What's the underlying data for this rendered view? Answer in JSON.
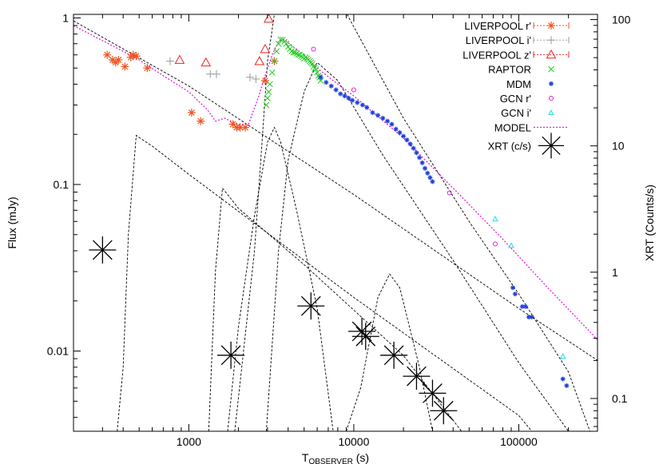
{
  "chart_data": {
    "type": "scatter",
    "title": "",
    "xlabel_main": "T",
    "xlabel_sub": "OBSERVER",
    "xlabel_unit": " (s)",
    "ylabel": "Flux (mJy)",
    "y2label": "XRT (Counts/s)",
    "x_scale": "log",
    "y_scale": "log",
    "y2_scale": "log",
    "xlim": [
      200,
      300000
    ],
    "ylim": [
      0.0033,
      1.05
    ],
    "y2lim": [
      0.055,
      110
    ],
    "grid": false,
    "legend_position": "top-right",
    "x_ticks": [
      {
        "value": 1000,
        "label": "1000"
      },
      {
        "value": 10000,
        "label": "10000"
      },
      {
        "value": 100000,
        "label": "100000"
      }
    ],
    "y_ticks": [
      {
        "value": 1,
        "label": "1"
      },
      {
        "value": 0.1,
        "label": "0.1"
      },
      {
        "value": 0.01,
        "label": "0.01"
      }
    ],
    "y2_ticks": [
      {
        "value": 100,
        "label": "100"
      },
      {
        "value": 10,
        "label": "10"
      },
      {
        "value": 1,
        "label": "1"
      },
      {
        "value": 0.1,
        "label": "0.1"
      }
    ],
    "series": [
      {
        "name": "LIVERPOOL r'",
        "marker": "asterisk",
        "color": "#ee5522",
        "points": [
          [
            320,
            0.6
          ],
          [
            345,
            0.56
          ],
          [
            360,
            0.54
          ],
          [
            375,
            0.56
          ],
          [
            410,
            0.51
          ],
          [
            445,
            0.58
          ],
          [
            460,
            0.6
          ],
          [
            480,
            0.59
          ],
          [
            560,
            0.5
          ],
          [
            1040,
            0.27
          ],
          [
            1180,
            0.24
          ],
          [
            1850,
            0.23
          ],
          [
            1950,
            0.22
          ],
          [
            2050,
            0.22
          ],
          [
            2200,
            0.22
          ],
          [
            2900,
            0.42
          ],
          [
            3300,
            0.55
          ]
        ]
      },
      {
        "name": "LIVERPOOL i'",
        "marker": "plus",
        "color": "#999999",
        "points": [
          [
            770,
            0.55
          ],
          [
            1350,
            0.46
          ],
          [
            1470,
            0.46
          ],
          [
            2350,
            0.44
          ],
          [
            2550,
            0.43
          ]
        ]
      },
      {
        "name": "LIVERPOOL z'",
        "marker": "triangle",
        "color": "#ee2222",
        "points": [
          [
            880,
            0.56
          ],
          [
            1270,
            0.54
          ],
          [
            2680,
            0.55
          ],
          [
            2900,
            0.65
          ],
          [
            3050,
            0.99
          ]
        ]
      },
      {
        "name": "RAPTOR",
        "marker": "x",
        "color": "#22cc22",
        "points": [
          [
            2950,
            0.3
          ],
          [
            3000,
            0.33
          ],
          [
            3050,
            0.36
          ],
          [
            3100,
            0.4
          ],
          [
            3200,
            0.47
          ],
          [
            3300,
            0.55
          ],
          [
            3400,
            0.63
          ],
          [
            3500,
            0.7
          ],
          [
            3600,
            0.74
          ],
          [
            3700,
            0.74
          ],
          [
            3800,
            0.72
          ],
          [
            3900,
            0.7
          ],
          [
            4000,
            0.67
          ],
          [
            4100,
            0.65
          ],
          [
            4200,
            0.63
          ],
          [
            4300,
            0.62
          ],
          [
            4400,
            0.62
          ],
          [
            4500,
            0.61
          ],
          [
            4600,
            0.6
          ],
          [
            4700,
            0.6
          ],
          [
            4800,
            0.59
          ],
          [
            4900,
            0.58
          ],
          [
            5000,
            0.57
          ],
          [
            5100,
            0.58
          ],
          [
            5200,
            0.57
          ],
          [
            5300,
            0.56
          ],
          [
            5400,
            0.55
          ],
          [
            5500,
            0.54
          ],
          [
            5600,
            0.53
          ],
          [
            5700,
            0.51
          ],
          [
            5800,
            0.5
          ],
          [
            5900,
            0.49
          ],
          [
            6000,
            0.47
          ],
          [
            6100,
            0.45
          ],
          [
            6200,
            0.44
          ],
          [
            6300,
            0.42
          ]
        ]
      },
      {
        "name": "MDM",
        "marker": "star",
        "color": "#1f3fdd",
        "points": [
          [
            6300,
            0.44
          ],
          [
            6800,
            0.41
          ],
          [
            7300,
            0.39
          ],
          [
            7800,
            0.37
          ],
          [
            8300,
            0.35
          ],
          [
            8800,
            0.34
          ],
          [
            9300,
            0.33
          ],
          [
            9800,
            0.32
          ],
          [
            10500,
            0.31
          ],
          [
            11300,
            0.3
          ],
          [
            12000,
            0.29
          ],
          [
            13000,
            0.27
          ],
          [
            14000,
            0.26
          ],
          [
            15000,
            0.25
          ],
          [
            16000,
            0.24
          ],
          [
            17000,
            0.23
          ],
          [
            18000,
            0.215
          ],
          [
            19000,
            0.205
          ],
          [
            20000,
            0.195
          ],
          [
            21000,
            0.185
          ],
          [
            22000,
            0.175
          ],
          [
            23000,
            0.165
          ],
          [
            24000,
            0.155
          ],
          [
            25000,
            0.145
          ],
          [
            26000,
            0.135
          ],
          [
            27000,
            0.125
          ],
          [
            28000,
            0.117
          ],
          [
            29000,
            0.11
          ],
          [
            30000,
            0.104
          ],
          [
            92000,
            0.024
          ],
          [
            95000,
            0.022
          ],
          [
            105000,
            0.0185
          ],
          [
            110000,
            0.0185
          ],
          [
            115000,
            0.016
          ],
          [
            120000,
            0.016
          ],
          [
            185000,
            0.0068
          ],
          [
            195000,
            0.0062
          ]
        ]
      },
      {
        "name": "GCN r'",
        "marker": "circle",
        "color": "#dd22dd",
        "points": [
          [
            5700,
            0.65
          ],
          [
            10000,
            0.37
          ],
          [
            38000,
            0.089
          ],
          [
            72000,
            0.044
          ]
        ]
      },
      {
        "name": "GCN i'",
        "marker": "triangle-small",
        "color": "#22dddd",
        "points": [
          [
            72000,
            0.062
          ],
          [
            90000,
            0.043
          ],
          [
            185000,
            0.0093
          ]
        ]
      },
      {
        "name": "XRT (c/s)",
        "marker": "bigstar",
        "color": "#000000",
        "axis": "y2",
        "points": [
          [
            300,
            1.5
          ],
          [
            1800,
            0.22
          ],
          [
            5500,
            0.54
          ],
          [
            11200,
            0.34
          ],
          [
            11800,
            0.31
          ],
          [
            17500,
            0.22
          ],
          [
            24000,
            0.15
          ],
          [
            30000,
            0.11
          ],
          [
            35000,
            0.08
          ]
        ]
      }
    ],
    "model": {
      "name": "MODEL",
      "color": "#dd22dd",
      "points": [
        [
          200,
          0.9
        ],
        [
          400,
          0.63
        ],
        [
          500,
          0.56
        ],
        [
          700,
          0.45
        ],
        [
          1000,
          0.36
        ],
        [
          1300,
          0.28
        ],
        [
          1450,
          0.24
        ],
        [
          1650,
          0.25
        ],
        [
          1800,
          0.24
        ],
        [
          2000,
          0.23
        ],
        [
          2300,
          0.23
        ],
        [
          2600,
          0.32
        ],
        [
          2900,
          0.45
        ],
        [
          3200,
          0.6
        ],
        [
          3500,
          0.72
        ],
        [
          3800,
          0.74
        ],
        [
          4300,
          0.67
        ],
        [
          5000,
          0.6
        ],
        [
          6000,
          0.5
        ],
        [
          8000,
          0.4
        ],
        [
          10000,
          0.34
        ],
        [
          20000,
          0.19
        ],
        [
          40000,
          0.095
        ],
        [
          80000,
          0.047
        ],
        [
          150000,
          0.024
        ],
        [
          300000,
          0.0117
        ]
      ]
    },
    "components": [
      {
        "points": [
          [
            200,
            0.96
          ],
          [
            1000,
            0.39
          ],
          [
            10000,
            0.087
          ],
          [
            100000,
            0.018
          ],
          [
            300000,
            0.0088
          ]
        ]
      },
      {
        "points": [
          [
            368,
            0.0033
          ],
          [
            400,
            0.008
          ],
          [
            430,
            0.05
          ],
          [
            480,
            0.197
          ],
          [
            600,
            0.17
          ],
          [
            1000,
            0.115
          ],
          [
            10000,
            0.021
          ],
          [
            100000,
            0.0041
          ],
          [
            120000,
            0.0033
          ]
        ]
      },
      {
        "points": [
          [
            1320,
            0.0033
          ],
          [
            1450,
            0.03
          ],
          [
            1600,
            0.095
          ],
          [
            2000,
            0.072
          ],
          [
            5000,
            0.033
          ],
          [
            20000,
            0.0094
          ],
          [
            45000,
            0.0033
          ]
        ]
      },
      {
        "points": [
          [
            1720,
            0.0033
          ],
          [
            2000,
            0.014
          ],
          [
            2500,
            0.065
          ],
          [
            3000,
            0.18
          ],
          [
            3300,
            0.22
          ],
          [
            3600,
            0.18
          ],
          [
            4500,
            0.07
          ],
          [
            6000,
            0.018
          ],
          [
            7500,
            0.0033
          ]
        ]
      },
      {
        "points": [
          [
            1900,
            0.0033
          ],
          [
            2500,
            0.04
          ],
          [
            2800,
            0.2
          ],
          [
            3000,
            0.55
          ],
          [
            3300,
            1.05
          ]
        ]
      },
      {
        "points": [
          [
            2950,
            0.0033
          ],
          [
            3500,
            0.04
          ],
          [
            4000,
            0.14
          ],
          [
            5000,
            0.36
          ],
          [
            6000,
            0.54
          ],
          [
            8000,
            0.42
          ],
          [
            15000,
            0.15
          ],
          [
            40000,
            0.035
          ],
          [
            100000,
            0.0085
          ],
          [
            200000,
            0.0033
          ]
        ]
      },
      {
        "points": [
          [
            9100,
            1.05
          ],
          [
            20000,
            0.25
          ],
          [
            50000,
            0.06
          ],
          [
            100000,
            0.022
          ],
          [
            200000,
            0.0075
          ],
          [
            270000,
            0.0033
          ]
        ]
      },
      {
        "points": [
          [
            9000,
            0.0033
          ],
          [
            11000,
            0.006
          ],
          [
            14000,
            0.021
          ],
          [
            16500,
            0.029
          ],
          [
            19000,
            0.024
          ],
          [
            25000,
            0.008
          ],
          [
            30000,
            0.0033
          ]
        ]
      }
    ]
  }
}
